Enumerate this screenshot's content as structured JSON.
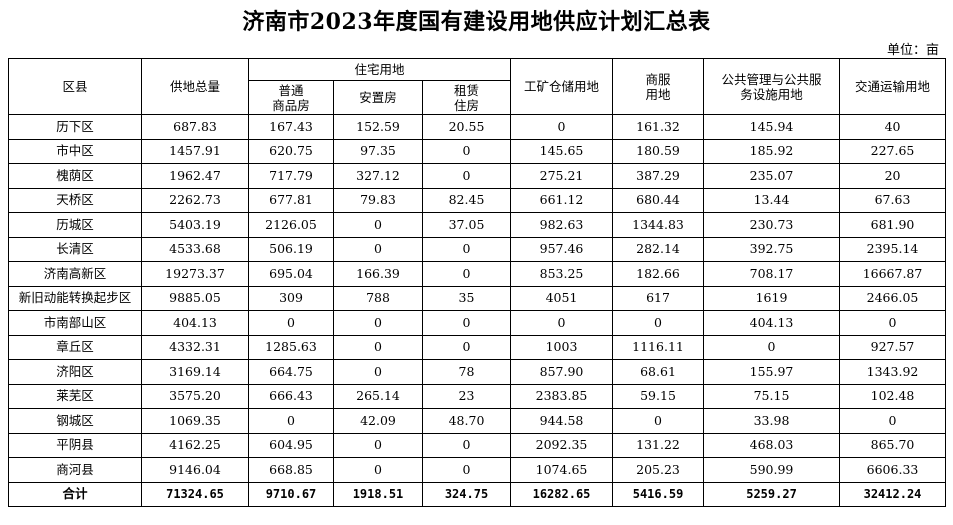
{
  "title": "济南市2023年度国有建设用地供应计划汇总表",
  "unit": "单位：亩",
  "headers": {
    "district": "区县",
    "total": "供地总量",
    "residential": "住宅用地",
    "commercial_housing": "普通\n商品房",
    "resettlement": "安置房",
    "rental": "租赁\n住房",
    "industrial": "工矿仓储用地",
    "business": "商服\n用地",
    "public": "公共管理与公共服\n务设施用地",
    "transport": "交通运输用地"
  },
  "rows": [
    {
      "district": "历下区",
      "total": "687.83",
      "commercial_housing": "167.43",
      "resettlement": "152.59",
      "rental": "20.55",
      "industrial": "0",
      "business": "161.32",
      "public": "145.94",
      "transport": "40"
    },
    {
      "district": "市中区",
      "total": "1457.91",
      "commercial_housing": "620.75",
      "resettlement": "97.35",
      "rental": "0",
      "industrial": "145.65",
      "business": "180.59",
      "public": "185.92",
      "transport": "227.65"
    },
    {
      "district": "槐荫区",
      "total": "1962.47",
      "commercial_housing": "717.79",
      "resettlement": "327.12",
      "rental": "0",
      "industrial": "275.21",
      "business": "387.29",
      "public": "235.07",
      "transport": "20"
    },
    {
      "district": "天桥区",
      "total": "2262.73",
      "commercial_housing": "677.81",
      "resettlement": "79.83",
      "rental": "82.45",
      "industrial": "661.12",
      "business": "680.44",
      "public": "13.44",
      "transport": "67.63"
    },
    {
      "district": "历城区",
      "total": "5403.19",
      "commercial_housing": "2126.05",
      "resettlement": "0",
      "rental": "37.05",
      "industrial": "982.63",
      "business": "1344.83",
      "public": "230.73",
      "transport": "681.90"
    },
    {
      "district": "长清区",
      "total": "4533.68",
      "commercial_housing": "506.19",
      "resettlement": "0",
      "rental": "0",
      "industrial": "957.46",
      "business": "282.14",
      "public": "392.75",
      "transport": "2395.14"
    },
    {
      "district": "济南高新区",
      "total": "19273.37",
      "commercial_housing": "695.04",
      "resettlement": "166.39",
      "rental": "0",
      "industrial": "853.25",
      "business": "182.66",
      "public": "708.17",
      "transport": "16667.87"
    },
    {
      "district": "新旧动能转换起步区",
      "total": "9885.05",
      "commercial_housing": "309",
      "resettlement": "788",
      "rental": "35",
      "industrial": "4051",
      "business": "617",
      "public": "1619",
      "transport": "2466.05"
    },
    {
      "district": "市南部山区",
      "total": "404.13",
      "commercial_housing": "0",
      "resettlement": "0",
      "rental": "0",
      "industrial": "0",
      "business": "0",
      "public": "404.13",
      "transport": "0"
    },
    {
      "district": "章丘区",
      "total": "4332.31",
      "commercial_housing": "1285.63",
      "resettlement": "0",
      "rental": "0",
      "industrial": "1003",
      "business": "1116.11",
      "public": "0",
      "transport": "927.57"
    },
    {
      "district": "济阳区",
      "total": "3169.14",
      "commercial_housing": "664.75",
      "resettlement": "0",
      "rental": "78",
      "industrial": "857.90",
      "business": "68.61",
      "public": "155.97",
      "transport": "1343.92"
    },
    {
      "district": "莱芜区",
      "total": "3575.20",
      "commercial_housing": "666.43",
      "resettlement": "265.14",
      "rental": "23",
      "industrial": "2383.85",
      "business": "59.15",
      "public": "75.15",
      "transport": "102.48"
    },
    {
      "district": "钢城区",
      "total": "1069.35",
      "commercial_housing": "0",
      "resettlement": "42.09",
      "rental": "48.70",
      "industrial": "944.58",
      "business": "0",
      "public": "33.98",
      "transport": "0"
    },
    {
      "district": "平阴县",
      "total": "4162.25",
      "commercial_housing": "604.95",
      "resettlement": "0",
      "rental": "0",
      "industrial": "2092.35",
      "business": "131.22",
      "public": "468.03",
      "transport": "865.70"
    },
    {
      "district": "商河县",
      "total": "9146.04",
      "commercial_housing": "668.85",
      "resettlement": "0",
      "rental": "0",
      "industrial": "1074.65",
      "business": "205.23",
      "public": "590.99",
      "transport": "6606.33"
    }
  ],
  "totals": {
    "district": "合计",
    "total": "71324.65",
    "commercial_housing": "9710.67",
    "resettlement": "1918.51",
    "rental": "324.75",
    "industrial": "16282.65",
    "business": "5416.59",
    "public": "5259.27",
    "transport": "32412.24"
  }
}
